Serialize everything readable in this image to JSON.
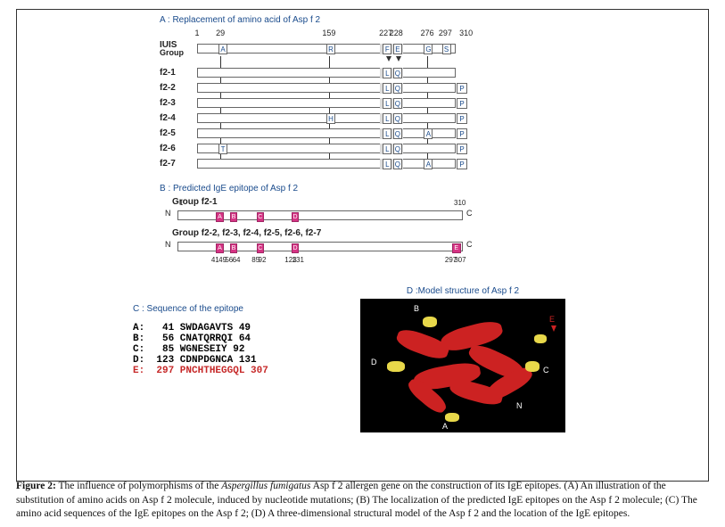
{
  "panelA": {
    "title": "A : Replacement of amino acid of Asp f 2",
    "positions": [
      1,
      29,
      159,
      227,
      228,
      276,
      297,
      310
    ],
    "iuis_label": "IUIS",
    "group_label": "Group",
    "iuis_acids": {
      "p29": "A",
      "p159": "R",
      "p227": "F",
      "p228": "E",
      "p276": "G",
      "p297": "S"
    },
    "rows": [
      {
        "label": "f2-1",
        "p227": "L",
        "p228": "Q",
        "side": ""
      },
      {
        "label": "f2-2",
        "p227": "L",
        "p228": "Q",
        "side": "P"
      },
      {
        "label": "f2-3",
        "p227": "L",
        "p228": "Q",
        "side": "P"
      },
      {
        "label": "f2-4",
        "p159": "H",
        "p227": "L",
        "p228": "Q",
        "side": "P"
      },
      {
        "label": "f2-5",
        "p227": "L",
        "p228": "Q",
        "p276": "A",
        "side": "P"
      },
      {
        "label": "f2-6",
        "p29": "T",
        "p227": "L",
        "p228": "Q",
        "side": "P"
      },
      {
        "label": "f2-7",
        "p227": "L",
        "p228": "Q",
        "p276": "A",
        "side": "P"
      }
    ],
    "highlight_region": {
      "start": 227,
      "end": 228
    }
  },
  "panelB": {
    "title": "B : Predicted IgE epitope of Asp f 2",
    "group1": {
      "label": "Group f2-1",
      "length": 310,
      "epitopes": [
        {
          "name": "A",
          "start": 41,
          "end": 49
        },
        {
          "name": "B",
          "start": 56,
          "end": 64
        },
        {
          "name": "C",
          "start": 85,
          "end": 92
        },
        {
          "name": "D",
          "start": 123,
          "end": 131
        }
      ]
    },
    "group2": {
      "label": "Group f2-2, f2-3, f2-4, f2-5, f2-6, f2-7",
      "length": 310,
      "epitopes": [
        {
          "name": "A",
          "start": 41,
          "end": 49
        },
        {
          "name": "B",
          "start": 56,
          "end": 64
        },
        {
          "name": "C",
          "start": 85,
          "end": 92
        },
        {
          "name": "D",
          "start": 123,
          "end": 131
        },
        {
          "name": "E",
          "start": 297,
          "end": 307
        }
      ]
    },
    "ticks": [
      41,
      49,
      56,
      64,
      85,
      92,
      123,
      131,
      297,
      307
    ],
    "n_label": "N",
    "c_label": "C",
    "end_label": "310",
    "start_label": "1"
  },
  "panelC": {
    "title": "C : Sequence of the epitope",
    "lines": [
      {
        "name": "A:",
        "start": "41",
        "seq": "SWDAGAVTS",
        "end": "49",
        "red": false
      },
      {
        "name": "B:",
        "start": "56",
        "seq": "CNATQRRQI",
        "end": "64",
        "red": false
      },
      {
        "name": "C:",
        "start": "85",
        "seq": "WGNESEIY",
        "end": "92",
        "red": false
      },
      {
        "name": "D:",
        "start": "123",
        "seq": "CDNPDGNCA",
        "end": "131",
        "red": false
      },
      {
        "name": "E:",
        "start": "297",
        "seq": "PNCHTHEGGQL",
        "end": "307",
        "red": true
      }
    ]
  },
  "panelD": {
    "title": "D :Model structure of Asp f 2",
    "labels": [
      "A",
      "B",
      "C",
      "D",
      "E",
      "N"
    ],
    "helix_color": "#cc2222",
    "loop_color": "#e8d84a",
    "background": "#000000"
  },
  "caption": {
    "lead": "Figure 2:",
    "body_before_species": " The influence of polymorphisms of the ",
    "species": "Aspergillus fumigatus",
    "body_after_species": " Asp f 2 allergen gene on the construction of its IgE epitopes. (A) An illustration of the substitution of amino acids on Asp f 2 molecule, induced by nucleotide mutations; (B) The localization of the predicted IgE epitopes on the Asp f 2 molecule; (C) The amino acid sequences of the IgE epitopes on the Asp f 2; (D) A three-dimensional structural model of the Asp f 2 and the location of the IgE epitopes."
  }
}
